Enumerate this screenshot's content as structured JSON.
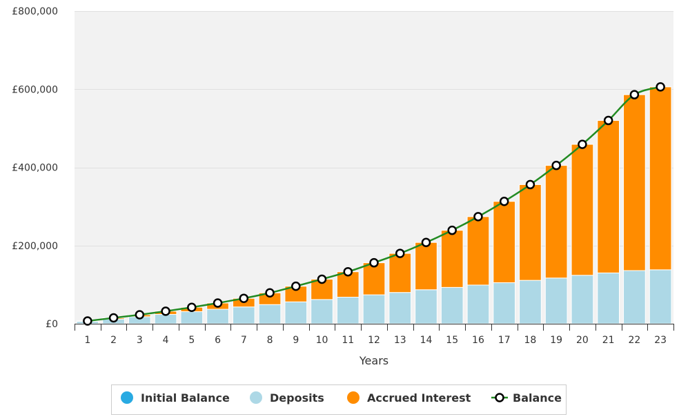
{
  "chart_data": {
    "type": "bar",
    "stacked": true,
    "xlabel": "Years",
    "ylabel": "",
    "ylim": [
      0,
      800000
    ],
    "y_ticks": [
      0,
      200000,
      400000,
      600000,
      800000
    ],
    "y_tick_labels": [
      "£0",
      "£200,000",
      "£400,000",
      "£600,000",
      "£800,000"
    ],
    "categories": [
      "1",
      "2",
      "3",
      "4",
      "5",
      "6",
      "7",
      "8",
      "9",
      "10",
      "11",
      "12",
      "13",
      "14",
      "15",
      "16",
      "17",
      "18",
      "19",
      "20",
      "21",
      "22",
      "23"
    ],
    "series": [
      {
        "name": "Initial Balance",
        "kind": "bar",
        "color": "#29aae2",
        "values": [
          0,
          0,
          0,
          0,
          0,
          0,
          0,
          0,
          0,
          0,
          0,
          0,
          0,
          0,
          0,
          0,
          0,
          0,
          0,
          0,
          0,
          0,
          0
        ]
      },
      {
        "name": "Deposits",
        "kind": "bar",
        "color": "#add8e6",
        "values": [
          6000,
          12000,
          18000,
          24000,
          31000,
          37000,
          43000,
          49000,
          56000,
          62000,
          68000,
          74000,
          80000,
          87000,
          93000,
          99000,
          105000,
          111000,
          117000,
          124000,
          130000,
          136000,
          138000
        ]
      },
      {
        "name": "Accrued Interest",
        "kind": "bar",
        "color": "#ff8c00",
        "values": [
          1000,
          3000,
          5000,
          8000,
          11000,
          16000,
          22000,
          30000,
          40000,
          52000,
          65000,
          82000,
          100000,
          121000,
          146000,
          175000,
          208000,
          245000,
          288000,
          335000,
          390000,
          450000,
          468000
        ]
      },
      {
        "name": "Balance",
        "kind": "line",
        "color": "#228b22",
        "values": [
          7000,
          15000,
          23000,
          32000,
          42000,
          53000,
          65000,
          79000,
          96000,
          114000,
          133000,
          156000,
          180000,
          208000,
          239000,
          274000,
          313000,
          356000,
          405000,
          459000,
          520000,
          586000,
          606000
        ]
      }
    ],
    "grid": true,
    "legend": "bottom"
  }
}
